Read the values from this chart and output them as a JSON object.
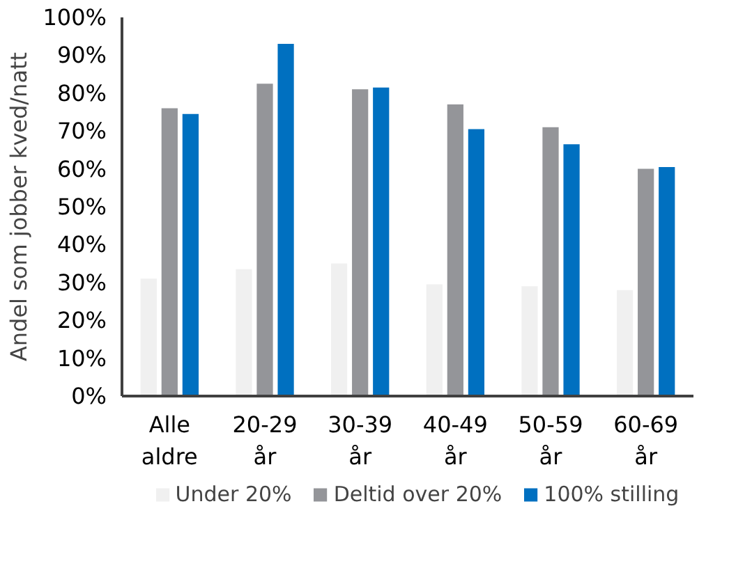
{
  "chart_data": {
    "type": "bar",
    "ylabel": "Andel som jobber kved/natt",
    "categories": [
      "Alle aldre",
      "20-29 år",
      "30-39 år",
      "40-49 år",
      "50-59 år",
      "60-69 år"
    ],
    "series": [
      {
        "name": "Under 20%",
        "color": "#f0f0f0",
        "values": [
          31,
          33.5,
          35,
          29.5,
          29,
          28
        ]
      },
      {
        "name": "Deltid over 20%",
        "color": "#949599",
        "values": [
          76,
          82.5,
          81,
          77,
          71,
          60
        ]
      },
      {
        "name": "100% stilling",
        "color": "#0070c0",
        "values": [
          74.5,
          93,
          81.5,
          70.5,
          66.5,
          60.5
        ]
      }
    ],
    "ylim": [
      0,
      100
    ],
    "yticks": [
      {
        "value": 0,
        "label": "0%"
      },
      {
        "value": 10,
        "label": "10%"
      },
      {
        "value": 20,
        "label": "20%"
      },
      {
        "value": 30,
        "label": "30%"
      },
      {
        "value": 40,
        "label": "40%"
      },
      {
        "value": 50,
        "label": "50%"
      },
      {
        "value": 60,
        "label": "60%"
      },
      {
        "value": 70,
        "label": "70%"
      },
      {
        "value": 80,
        "label": "80%"
      },
      {
        "value": 90,
        "label": "90%"
      },
      {
        "value": 100,
        "label": "100%"
      }
    ],
    "grid": false,
    "legend": "bottom"
  }
}
